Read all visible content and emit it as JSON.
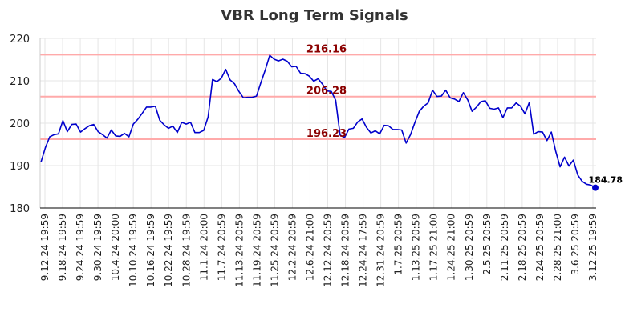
{
  "chart_data": {
    "type": "line",
    "title": "VBR Long Term Signals",
    "xlabel": "",
    "ylabel": "",
    "ylim": [
      180,
      220
    ],
    "yticks": [
      180,
      190,
      200,
      210,
      220
    ],
    "xtick_labels": [
      "9.12.24 19:59",
      "9.18.24 19:59",
      "9.24.24 19:59",
      "9.30.24 19:59",
      "10.4.24 20:00",
      "10.10.24 19:59",
      "10.16.24 19:59",
      "10.22.24 19:59",
      "10.28.24 19:59",
      "11.1.24 20:00",
      "11.7.24 20:59",
      "11.13.24 20:59",
      "11.19.24 20:59",
      "11.25.24 20:59",
      "12.2.24 20:59",
      "12.6.24 21:00",
      "12.12.24 20:59",
      "12.18.24 20:59",
      "12.24.24 17:59",
      "12.31.24 20:59",
      "1.7.25 20:59",
      "1.13.25 20:59",
      "1.17.25 21:00",
      "1.24.25 21:00",
      "1.30.25 20:59",
      "2.5.25 20:59",
      "2.11.25 20:59",
      "2.18.25 20:59",
      "2.24.25 20:59",
      "2.28.25 21:00",
      "3.6.25 20:59",
      "3.12.25 19:59"
    ],
    "grid": true,
    "series": [
      {
        "color": "#0000cc",
        "values": [
          190.8,
          194.2,
          196.8,
          197.3,
          197.5,
          200.6,
          198.0,
          199.7,
          199.8,
          197.9,
          198.7,
          199.4,
          199.7,
          198.0,
          197.3,
          196.5,
          198.4,
          197.0,
          196.9,
          197.6,
          196.8,
          199.8,
          200.9,
          202.3,
          203.8,
          203.8,
          204.0,
          200.7,
          199.6,
          198.8,
          199.3,
          197.8,
          200.2,
          199.8,
          200.2,
          197.8,
          197.8,
          198.3,
          201.5,
          210.3,
          209.8,
          210.6,
          212.7,
          210.2,
          209.3,
          207.5,
          206.0,
          206.1,
          206.1,
          206.4,
          209.6,
          212.6,
          216.0,
          215.1,
          214.7,
          215.1,
          214.6,
          213.3,
          213.4,
          211.8,
          211.7,
          211.1,
          209.9,
          210.5,
          209.2,
          207.6,
          207.5,
          205.4,
          197.2,
          196.6,
          198.6,
          198.8,
          200.3,
          201.0,
          199.0,
          197.7,
          198.2,
          197.5,
          199.5,
          199.4,
          198.5,
          198.5,
          198.4,
          195.3,
          197.3,
          200.2,
          202.8,
          204.0,
          204.8,
          207.8,
          206.3,
          206.4,
          207.8,
          206.0,
          205.7,
          205.1,
          207.2,
          205.5,
          202.8,
          203.8,
          205.1,
          205.3,
          203.5,
          203.3,
          203.6,
          201.3,
          203.6,
          203.6,
          204.8,
          204.0,
          202.2,
          204.9,
          197.4,
          198.0,
          197.9,
          195.9,
          197.9,
          193.4,
          189.7,
          192.0,
          189.9,
          191.3,
          187.8,
          186.3,
          185.6,
          185.4,
          184.78
        ]
      }
    ],
    "hlines": [
      {
        "value": 216.16,
        "label": "216.16",
        "color": "#ffaaaa"
      },
      {
        "value": 206.28,
        "label": "206.28",
        "color": "#ffaaaa"
      },
      {
        "value": 196.23,
        "label": "196.23",
        "color": "#ffaaaa"
      }
    ],
    "last_point": {
      "value": 184.78,
      "label": "184.78",
      "color": "#0000cc"
    }
  }
}
